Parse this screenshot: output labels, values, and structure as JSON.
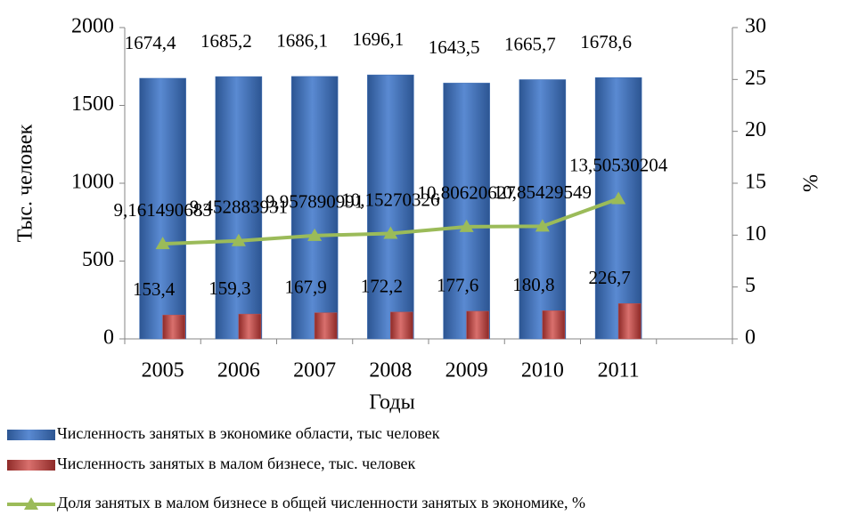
{
  "chart_data": {
    "type": "bar",
    "x_label": "Годы",
    "y_label": "Тыс. человек",
    "y2_label": "%",
    "categories": [
      "2005",
      "2006",
      "2007",
      "2008",
      "2009",
      "2010",
      "2011",
      null
    ],
    "series": [
      {
        "name": "Численность занятых в экономике области, тыс человек",
        "color": "#3c6db5",
        "type": "bar",
        "values": [
          1674.4,
          1685.2,
          1686.1,
          1696.1,
          1643.5,
          1665.7,
          1678.6,
          null
        ],
        "value_labels": [
          "1674,4",
          "1685,2",
          "1686,1",
          "1696,1",
          "1643,5",
          "1665,7",
          "1678,6",
          null
        ]
      },
      {
        "name": "Численность занятых в малом бизнесе, тыс. человек",
        "color": "#c0504d",
        "type": "bar",
        "values": [
          153.4,
          159.3,
          167.9,
          172.2,
          177.6,
          180.8,
          226.7,
          null
        ],
        "value_labels": [
          "153,4",
          "159,3",
          "167,9",
          "172,2",
          "177,6",
          "180,8",
          "226,7",
          null
        ]
      },
      {
        "name": "Доля занятых в малом бизнесе в общей численности занятых в экономике, %",
        "color": "#9bbb59",
        "type": "line",
        "axis": "y2",
        "values": [
          9.161490683,
          9.452883931,
          9.957890991,
          10.15270326,
          10.80620627,
          10.85429549,
          13.50530204,
          null
        ],
        "value_labels": [
          "9,161490683",
          "9,452883931",
          "9,957890991",
          "10,15270326",
          "10,80620627",
          "10,85429549",
          "13,50530204",
          null
        ]
      }
    ],
    "ylim": [
      0,
      2000
    ],
    "yticks": [
      0,
      500,
      1000,
      1500,
      2000
    ],
    "y2lim": [
      0,
      30
    ],
    "y2ticks": [
      0,
      5,
      10,
      15,
      20,
      25,
      30
    ],
    "legend": "bottom"
  }
}
